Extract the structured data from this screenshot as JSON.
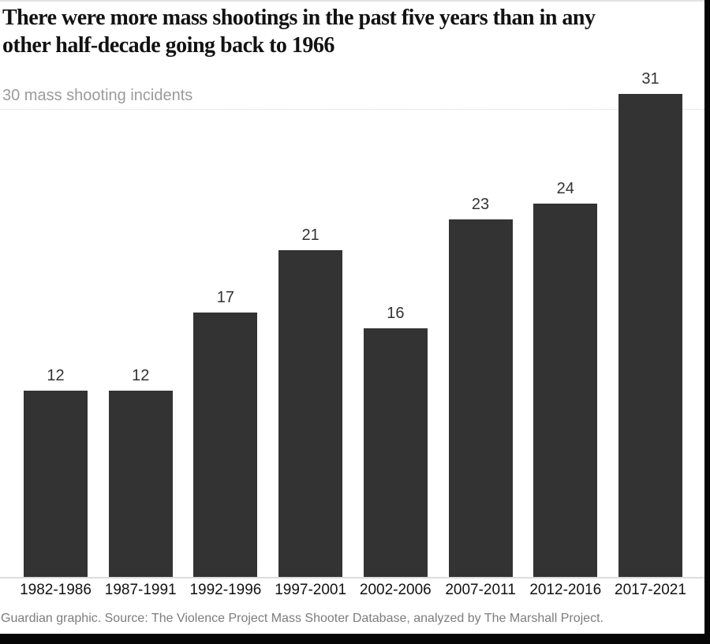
{
  "title": {
    "full": "There were more mass shootings in the past five years than in any other half-decade going back to 1966",
    "lines": [
      "There were more mass shootings in the past five years than in any",
      "other half-decade going back to 1966"
    ]
  },
  "chart_data": {
    "type": "bar",
    "title": "There were more mass shootings in the past five years than in any other half-decade going back to 1966",
    "axis_label": "30 mass shooting incidents",
    "categories": [
      "1982-1986",
      "1987-1991",
      "1992-1996",
      "1997-2001",
      "2002-2006",
      "2007-2011",
      "2012-2016",
      "2017-2021"
    ],
    "values": [
      12,
      12,
      17,
      21,
      16,
      23,
      24,
      31
    ],
    "xlabel": "",
    "ylabel": "mass shooting incidents",
    "ylim": [
      0,
      31
    ],
    "gridline_value": 30,
    "grid": "single dotted line at 30",
    "legend": "none",
    "bar_color": "#333333",
    "value_labels_shown": true
  },
  "footer": {
    "text": "Guardian graphic. Source: The Violence Project Mass Shooter Database, analyzed by The Marshall Project."
  }
}
